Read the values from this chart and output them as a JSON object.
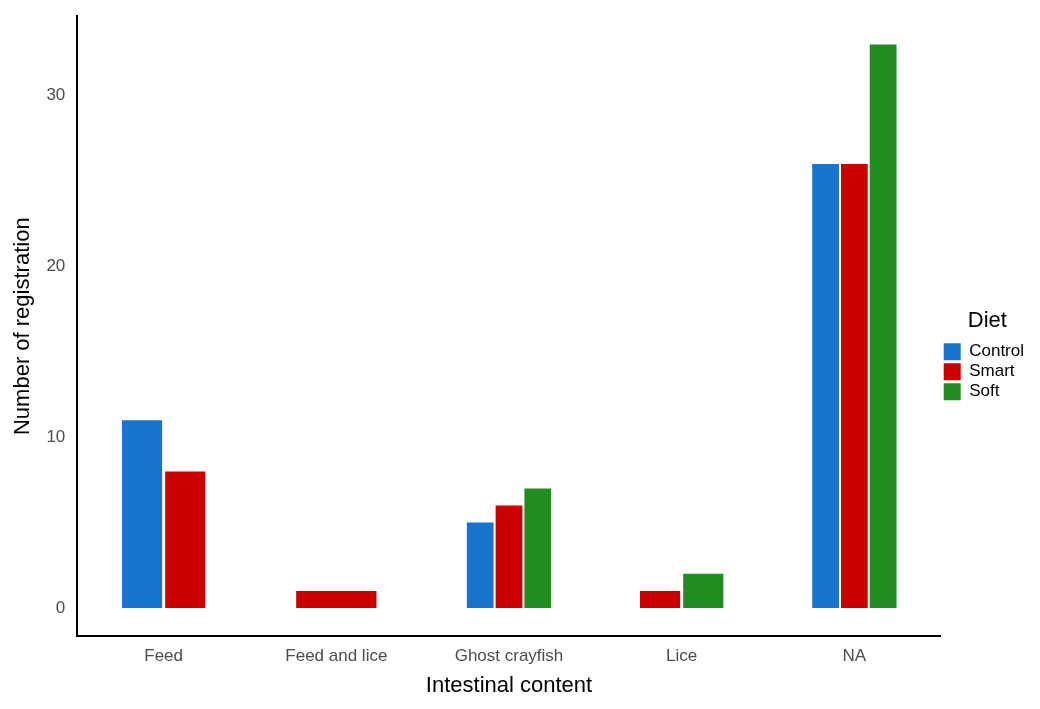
{
  "chart_data": {
    "type": "bar",
    "xlabel": "Intestinal content",
    "ylabel": "Number of registration",
    "legend_title": "Diet",
    "categories": [
      "Feed",
      "Feed and lice",
      "Ghost crayfish",
      "Lice",
      "NA"
    ],
    "series": [
      {
        "name": "Control",
        "color": "#1874cd",
        "values": [
          11,
          null,
          5,
          null,
          26
        ]
      },
      {
        "name": "Smart",
        "color": "#cd0000",
        "values": [
          8,
          1,
          6,
          1,
          26
        ]
      },
      {
        "name": "Soft",
        "color": "#228b22",
        "values": [
          null,
          null,
          7,
          2,
          33
        ]
      }
    ],
    "ylim": [
      -1.65,
      34.65
    ],
    "yticks": [
      0,
      10,
      20,
      30
    ],
    "grid": false,
    "legend": "right"
  }
}
